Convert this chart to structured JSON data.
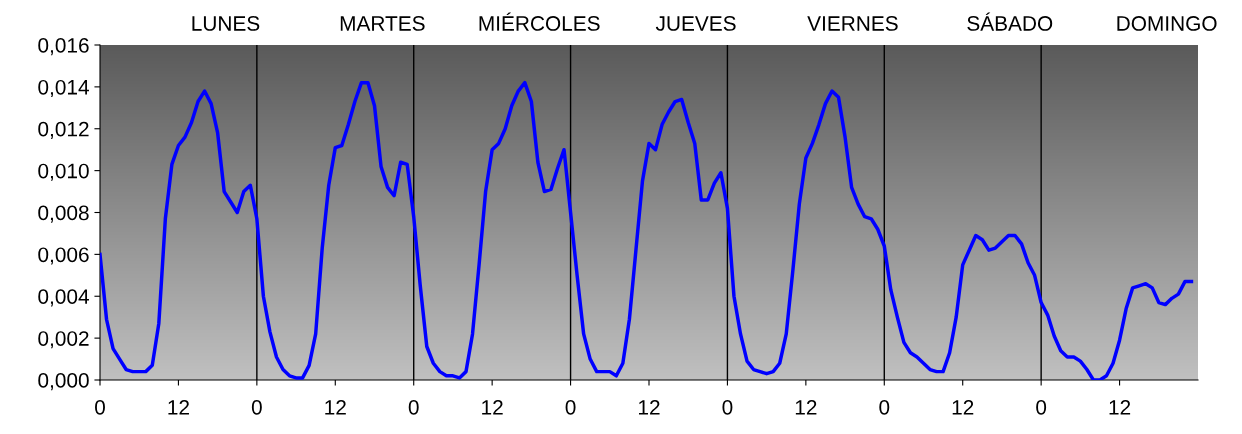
{
  "chart_data": {
    "type": "line",
    "categories": [
      "0",
      null,
      null,
      null,
      null,
      null,
      null,
      null,
      null,
      null,
      null,
      null,
      "12",
      null,
      null,
      null,
      null,
      null,
      null,
      null,
      null,
      null,
      null,
      null,
      "0",
      null,
      null,
      null,
      null,
      null,
      null,
      null,
      null,
      null,
      null,
      null,
      "12",
      null,
      null,
      null,
      null,
      null,
      null,
      null,
      null,
      null,
      null,
      null,
      "0",
      null,
      null,
      null,
      null,
      null,
      null,
      null,
      null,
      null,
      null,
      null,
      "12",
      null,
      null,
      null,
      null,
      null,
      null,
      null,
      null,
      null,
      null,
      null,
      "0",
      null,
      null,
      null,
      null,
      null,
      null,
      null,
      null,
      null,
      null,
      null,
      "12",
      null,
      null,
      null,
      null,
      null,
      null,
      null,
      null,
      null,
      null,
      null,
      "0",
      null,
      null,
      null,
      null,
      null,
      null,
      null,
      null,
      null,
      null,
      null,
      "12",
      null,
      null,
      null,
      null,
      null,
      null,
      null,
      null,
      null,
      null,
      null,
      "0",
      null,
      null,
      null,
      null,
      null,
      null,
      null,
      null,
      null,
      null,
      null,
      "12",
      null,
      null,
      null,
      null,
      null,
      null,
      null,
      null,
      null,
      null,
      null,
      "0",
      null,
      null,
      null,
      null,
      null,
      null,
      null,
      null,
      null,
      null,
      null,
      "12",
      null,
      null,
      null,
      null,
      null,
      null,
      null,
      null,
      null,
      null,
      null
    ],
    "annotations": [
      "LUNES",
      "MARTES",
      "MIÉRCOLES",
      "JUEVES",
      "VIERNES",
      "SÁBADO",
      "DOMINGO"
    ],
    "series": [
      {
        "color": "#0000ff",
        "values": [
          0.006,
          0.0029,
          0.0015,
          0.001,
          0.0005,
          0.0004,
          0.0004,
          0.0004,
          0.0007,
          0.0027,
          0.0077,
          0.0103,
          0.0112,
          0.0116,
          0.0123,
          0.0133,
          0.0138,
          0.0132,
          0.0118,
          0.009,
          0.0085,
          0.008,
          0.009,
          0.0093,
          0.0077,
          0.004,
          0.0023,
          0.0011,
          0.0005,
          0.0002,
          0.0001,
          0.0001,
          0.0007,
          0.0022,
          0.0063,
          0.0093,
          0.0111,
          0.0112,
          0.0122,
          0.0133,
          0.0142,
          0.0142,
          0.0131,
          0.0102,
          0.0092,
          0.0088,
          0.0104,
          0.0103,
          0.0078,
          0.0045,
          0.0016,
          0.0008,
          0.0004,
          0.0002,
          0.0002,
          0.0001,
          0.0004,
          0.0022,
          0.0055,
          0.009,
          0.011,
          0.0113,
          0.012,
          0.0131,
          0.0138,
          0.0142,
          0.0133,
          0.0104,
          0.009,
          0.0091,
          0.0101,
          0.011,
          0.008,
          0.005,
          0.0022,
          0.001,
          0.0004,
          0.0004,
          0.0004,
          0.0002,
          0.0008,
          0.0029,
          0.0062,
          0.0095,
          0.0113,
          0.011,
          0.0122,
          0.0128,
          0.0133,
          0.0134,
          0.0123,
          0.0113,
          0.0086,
          0.0086,
          0.0094,
          0.0099,
          0.0082,
          0.004,
          0.0022,
          0.0009,
          0.0005,
          0.0004,
          0.0003,
          0.0004,
          0.0008,
          0.0022,
          0.0052,
          0.0084,
          0.0106,
          0.0113,
          0.0122,
          0.0132,
          0.0138,
          0.0135,
          0.0116,
          0.0092,
          0.0084,
          0.0078,
          0.0077,
          0.0072,
          0.0064,
          0.0043,
          0.003,
          0.0018,
          0.0013,
          0.0011,
          0.0008,
          0.0005,
          0.0004,
          0.0004,
          0.0013,
          0.003,
          0.0055,
          0.0062,
          0.0069,
          0.0067,
          0.0062,
          0.0063,
          0.0066,
          0.0069,
          0.0069,
          0.0065,
          0.0056,
          0.005,
          0.0037,
          0.0031,
          0.0021,
          0.0014,
          0.0011,
          0.0011,
          0.0009,
          0.0005,
          0.0,
          0.0,
          0.0002,
          0.0008,
          0.0019,
          0.0034,
          0.0044,
          0.0045,
          0.0046,
          0.0044,
          0.0037,
          0.0036,
          0.0039,
          0.0041,
          0.0047,
          0.0047
        ]
      }
    ],
    "ylim": [
      0,
      0.016
    ],
    "yticks": [
      {
        "value": 0,
        "label": "0,000"
      },
      {
        "value": 0.002,
        "label": "0,002"
      },
      {
        "value": 0.004,
        "label": "0,004"
      },
      {
        "value": 0.006,
        "label": "0,006"
      },
      {
        "value": 0.008,
        "label": "0,008"
      },
      {
        "value": 0.01,
        "label": "0,010"
      },
      {
        "value": 0.012,
        "label": "0,012"
      },
      {
        "value": 0.014,
        "label": "0,014"
      },
      {
        "value": 0.016,
        "label": "0,016"
      }
    ],
    "grid": false,
    "marker": "none",
    "line_style": "solid"
  }
}
